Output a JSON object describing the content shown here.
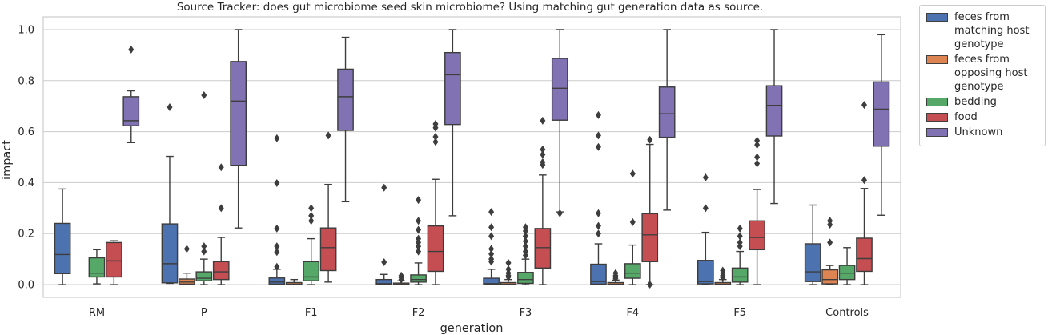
{
  "chart_data": {
    "type": "box",
    "title": "Source Tracker: does gut microbiome seed skin microbiome? Using matching gut generation data as source.",
    "xlabel": "generation",
    "ylabel": "impact",
    "ylim": [
      -0.05,
      1.05
    ],
    "yticks": [
      "0.0",
      "0.2",
      "0.4",
      "0.6",
      "0.8",
      "1.0"
    ],
    "grid": true,
    "legend_position": "outside-right",
    "categories": [
      "RM",
      "P",
      "F1",
      "F2",
      "F3",
      "F4",
      "F5",
      "Controls"
    ],
    "series": [
      {
        "name": "feces from\nmatching host\ngenotype",
        "color": "#4c72b0",
        "boxes": [
          {
            "whislo": 0.0,
            "q1": 0.043,
            "med": 0.118,
            "q3": 0.24,
            "whishi": 0.375,
            "fliers": []
          },
          {
            "whislo": 0.005,
            "q1": 0.007,
            "med": 0.082,
            "q3": 0.238,
            "whishi": 0.503,
            "fliers": [
              0.696
            ]
          },
          {
            "whislo": 0.0,
            "q1": 0.002,
            "med": 0.01,
            "q3": 0.026,
            "whishi": 0.06,
            "fliers": [
              0.574,
              0.398,
              0.22,
              0.15,
              0.128,
              0.07
            ]
          },
          {
            "whislo": 0.0,
            "q1": 0.0,
            "med": 0.004,
            "q3": 0.02,
            "whishi": 0.04,
            "fliers": [
              0.38,
              0.088
            ]
          },
          {
            "whislo": 0.0,
            "q1": 0.0,
            "med": 0.004,
            "q3": 0.025,
            "whishi": 0.06,
            "fliers": [
              0.285,
              0.225,
              0.19,
              0.14,
              0.12,
              0.1,
              0.09
            ]
          },
          {
            "whislo": 0.0,
            "q1": 0.002,
            "med": 0.012,
            "q3": 0.08,
            "whishi": 0.16,
            "fliers": [
              0.665,
              0.585,
              0.54,
              0.28,
              0.23,
              0.2
            ]
          },
          {
            "whislo": 0.0,
            "q1": 0.003,
            "med": 0.012,
            "q3": 0.095,
            "whishi": 0.205,
            "fliers": [
              0.42,
              0.3
            ]
          },
          {
            "whislo": 0.0,
            "q1": 0.012,
            "med": 0.05,
            "q3": 0.16,
            "whishi": 0.312,
            "fliers": []
          }
        ]
      },
      {
        "name": "feces from\nopposing host\ngenotype",
        "color": "#dd8452",
        "boxes": [
          null,
          {
            "whislo": 0.0,
            "q1": 0.002,
            "med": 0.01,
            "q3": 0.022,
            "whishi": 0.045,
            "fliers": [
              0.14
            ]
          },
          {
            "whislo": 0.0,
            "q1": 0.0,
            "med": 0.002,
            "q3": 0.008,
            "whishi": 0.02,
            "fliers": []
          },
          {
            "whislo": 0.0,
            "q1": 0.0,
            "med": 0.002,
            "q3": 0.006,
            "whishi": 0.015,
            "fliers": [
              0.035,
              0.028,
              0.02
            ]
          },
          {
            "whislo": 0.0,
            "q1": 0.0,
            "med": 0.002,
            "q3": 0.008,
            "whishi": 0.02,
            "fliers": [
              0.085,
              0.06,
              0.045,
              0.035,
              0.03
            ]
          },
          {
            "whislo": 0.0,
            "q1": 0.0,
            "med": 0.002,
            "q3": 0.008,
            "whishi": 0.018,
            "fliers": [
              0.045,
              0.035,
              0.03,
              0.025
            ]
          },
          {
            "whislo": 0.0,
            "q1": 0.0,
            "med": 0.002,
            "q3": 0.008,
            "whishi": 0.02,
            "fliers": [
              0.055,
              0.045,
              0.035,
              0.028
            ]
          },
          {
            "whislo": 0.0,
            "q1": 0.003,
            "med": 0.02,
            "q3": 0.058,
            "whishi": 0.075,
            "fliers": [
              0.25,
              0.235,
              0.165
            ]
          }
        ]
      },
      {
        "name": "bedding",
        "color": "#55a868",
        "boxes": [
          {
            "whislo": 0.003,
            "q1": 0.03,
            "med": 0.045,
            "q3": 0.105,
            "whishi": 0.137,
            "fliers": []
          },
          {
            "whislo": 0.0,
            "q1": 0.015,
            "med": 0.025,
            "q3": 0.05,
            "whishi": 0.1,
            "fliers": [
              0.743,
              0.15,
              0.13
            ]
          },
          {
            "whislo": 0.0,
            "q1": 0.015,
            "med": 0.03,
            "q3": 0.09,
            "whishi": 0.18,
            "fliers": [
              0.3,
              0.27,
              0.25
            ]
          },
          {
            "whislo": 0.0,
            "q1": 0.01,
            "med": 0.02,
            "q3": 0.038,
            "whishi": 0.085,
            "fliers": [
              0.332,
              0.25,
              0.215,
              0.18,
              0.165,
              0.15,
              0.13
            ]
          },
          {
            "whislo": 0.0,
            "q1": 0.005,
            "med": 0.02,
            "q3": 0.048,
            "whishi": 0.1,
            "fliers": [
              0.225,
              0.21,
              0.19,
              0.17,
              0.15,
              0.13,
              0.115
            ]
          },
          {
            "whislo": 0.0,
            "q1": 0.025,
            "med": 0.045,
            "q3": 0.082,
            "whishi": 0.155,
            "fliers": [
              0.435,
              0.245
            ]
          },
          {
            "whislo": 0.0,
            "q1": 0.01,
            "med": 0.03,
            "q3": 0.065,
            "whishi": 0.13,
            "fliers": [
              0.22,
              0.19,
              0.165,
              0.15
            ]
          },
          {
            "whislo": 0.0,
            "q1": 0.02,
            "med": 0.045,
            "q3": 0.075,
            "whishi": 0.145,
            "fliers": []
          }
        ]
      },
      {
        "name": "food",
        "color": "#c44e52",
        "boxes": [
          {
            "whislo": 0.0,
            "q1": 0.03,
            "med": 0.093,
            "q3": 0.165,
            "whishi": 0.172,
            "fliers": []
          },
          {
            "whislo": 0.0,
            "q1": 0.02,
            "med": 0.05,
            "q3": 0.09,
            "whishi": 0.185,
            "fliers": [
              0.46,
              0.3
            ]
          },
          {
            "whislo": 0.01,
            "q1": 0.055,
            "med": 0.145,
            "q3": 0.222,
            "whishi": 0.393,
            "fliers": [
              0.585
            ]
          },
          {
            "whislo": 0.0,
            "q1": 0.052,
            "med": 0.13,
            "q3": 0.23,
            "whishi": 0.413,
            "fliers": [
              0.63,
              0.615,
              0.58,
              0.56
            ]
          },
          {
            "whislo": 0.0,
            "q1": 0.065,
            "med": 0.145,
            "q3": 0.22,
            "whishi": 0.43,
            "fliers": [
              0.643,
              0.53,
              0.51,
              0.48,
              0.47
            ]
          },
          {
            "whislo": 0.0,
            "q1": 0.09,
            "med": 0.195,
            "q3": 0.278,
            "whishi": 0.55,
            "fliers": [
              0.568,
              0.0
            ]
          },
          {
            "whislo": 0.0,
            "q1": 0.137,
            "med": 0.185,
            "q3": 0.25,
            "whishi": 0.373,
            "fliers": [
              0.565,
              0.548,
              0.5,
              0.475
            ]
          },
          {
            "whislo": 0.0,
            "q1": 0.052,
            "med": 0.102,
            "q3": 0.182,
            "whishi": 0.377,
            "fliers": [
              0.705,
              0.41
            ]
          }
        ]
      },
      {
        "name": "Unknown",
        "color": "#8172b3",
        "boxes": [
          {
            "whislo": 0.557,
            "q1": 0.623,
            "med": 0.643,
            "q3": 0.737,
            "whishi": 0.76,
            "fliers": [
              0.922
            ]
          },
          {
            "whislo": 0.222,
            "q1": 0.468,
            "med": 0.72,
            "q3": 0.875,
            "whishi": 1.0,
            "fliers": []
          },
          {
            "whislo": 0.325,
            "q1": 0.605,
            "med": 0.737,
            "q3": 0.845,
            "whishi": 0.97,
            "fliers": []
          },
          {
            "whislo": 0.27,
            "q1": 0.628,
            "med": 0.823,
            "q3": 0.91,
            "whishi": 1.0,
            "fliers": []
          },
          {
            "whislo": 0.285,
            "q1": 0.645,
            "med": 0.77,
            "q3": 0.887,
            "whishi": 1.0,
            "fliers": [
              0.28
            ]
          },
          {
            "whislo": 0.292,
            "q1": 0.578,
            "med": 0.67,
            "q3": 0.775,
            "whishi": 1.0,
            "fliers": []
          },
          {
            "whislo": 0.318,
            "q1": 0.583,
            "med": 0.703,
            "q3": 0.78,
            "whishi": 1.0,
            "fliers": []
          },
          {
            "whislo": 0.272,
            "q1": 0.543,
            "med": 0.688,
            "q3": 0.795,
            "whishi": 0.98,
            "fliers": []
          }
        ]
      }
    ]
  }
}
